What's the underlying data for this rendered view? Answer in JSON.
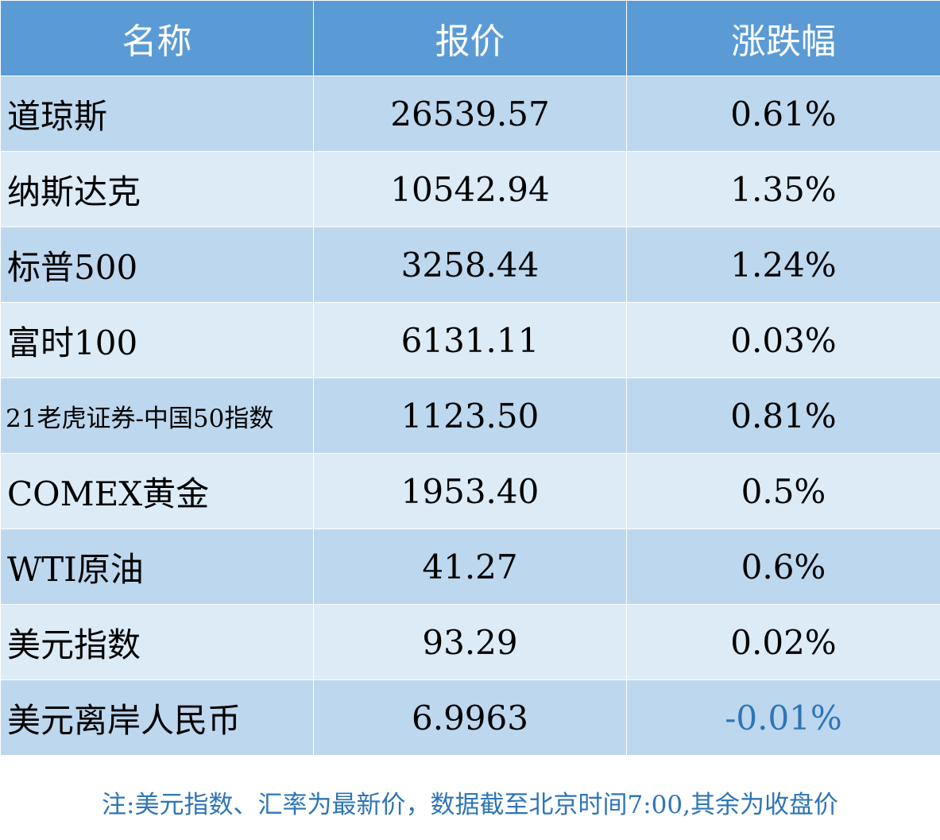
{
  "table": {
    "headers": [
      "名称",
      "报价",
      "涨跌幅"
    ],
    "rows": [
      {
        "name": "道琼斯",
        "price": "26539.57",
        "change": "0.61%"
      },
      {
        "name": "纳斯达克",
        "price": "10542.94",
        "change": "1.35%"
      },
      {
        "name": "标普500",
        "price": "3258.44",
        "change": "1.24%"
      },
      {
        "name": "富时100",
        "price": "6131.11",
        "change": "0.03%"
      },
      {
        "name": "21老虎证券-中国50指数",
        "price": "1123.50",
        "change": "0.81%"
      },
      {
        "name": "COMEX黄金",
        "price": "1953.40",
        "change": "0.5%"
      },
      {
        "name": "WTI原油",
        "price": "41.27",
        "change": "0.6%"
      },
      {
        "name": "美元指数",
        "price": "93.29",
        "change": "0.02%"
      },
      {
        "name": "美元离岸人民币",
        "price": "6.9963",
        "change": "-0.01%"
      }
    ]
  },
  "note": "注:美元指数、汇率为最新价，数据截至北京时间7:00,其余为收盘价",
  "colors": {
    "header_bg": "#5b9bd5",
    "row_odd_bg": "#bdd7ee",
    "row_even_bg": "#ddebf7",
    "negative_text": "#2e75b6",
    "note_text": "#2e75b6"
  }
}
